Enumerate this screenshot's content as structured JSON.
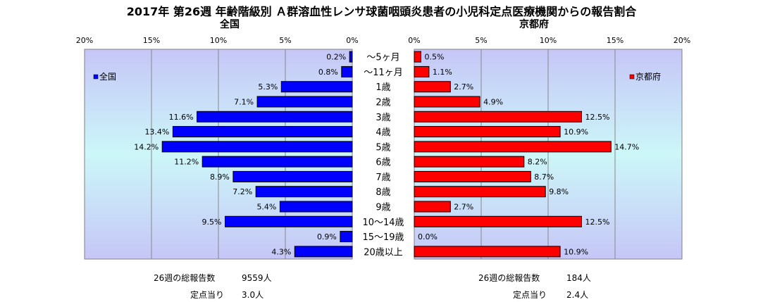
{
  "title": "2017年 第26週 年齢階級別 Ａ群溶血性レンサ球菌咽頭炎患者の小児科定点医療機関からの報告割合",
  "chart_data": [
    {
      "type": "bar",
      "orientation": "horizontal",
      "title": "全国",
      "legend": "全国",
      "legend_position": "left",
      "color": "#0000FF",
      "axis_direction": "reversed",
      "xlim": [
        0,
        20
      ],
      "ticks": [
        "20%",
        "15%",
        "10%",
        "5%",
        "0%"
      ],
      "categories": [
        "〜5ヶ月",
        "〜11ヶ月",
        "1歳",
        "2歳",
        "3歳",
        "4歳",
        "5歳",
        "6歳",
        "7歳",
        "8歳",
        "9歳",
        "10〜14歳",
        "15〜19歳",
        "20歳以上"
      ],
      "values": [
        0.2,
        0.8,
        5.3,
        7.1,
        11.6,
        13.4,
        14.2,
        11.2,
        8.9,
        7.2,
        5.4,
        9.5,
        0.9,
        4.3
      ],
      "value_labels": [
        "0.2%",
        "0.8%",
        "5.3%",
        "7.1%",
        "11.6%",
        "13.4%",
        "14.2%",
        "11.2%",
        "8.9%",
        "7.2%",
        "5.4%",
        "9.5%",
        "0.9%",
        "4.3%"
      ],
      "grid": true
    },
    {
      "type": "bar",
      "orientation": "horizontal",
      "title": "京都府",
      "legend": "京都府",
      "legend_position": "right",
      "color": "#FF0000",
      "xlim": [
        0,
        20
      ],
      "ticks": [
        "0%",
        "5%",
        "10%",
        "15%",
        "20%"
      ],
      "categories": [
        "〜5ヶ月",
        "〜11ヶ月",
        "1歳",
        "2歳",
        "3歳",
        "4歳",
        "5歳",
        "6歳",
        "7歳",
        "8歳",
        "9歳",
        "10〜14歳",
        "15〜19歳",
        "20歳以上"
      ],
      "values": [
        0.5,
        1.1,
        2.7,
        4.9,
        12.5,
        10.9,
        14.7,
        8.2,
        8.7,
        9.8,
        2.7,
        12.5,
        0.0,
        10.9
      ],
      "value_labels": [
        "0.5%",
        "1.1%",
        "2.7%",
        "4.9%",
        "12.5%",
        "10.9%",
        "14.7%",
        "8.2%",
        "8.7%",
        "9.8%",
        "2.7%",
        "12.5%",
        "0.0%",
        "10.9%"
      ],
      "grid": true
    }
  ],
  "footer": {
    "national": {
      "total_label": "26週の総報告数",
      "total_value": "9559人",
      "per_label": "定点当り",
      "per_value": "3.0人"
    },
    "kyoto": {
      "total_label": "26週の総報告数",
      "total_value": "184人",
      "per_label": "定点当り",
      "per_value": "2.4人"
    }
  },
  "colors": {
    "panel_top": "#c8c8f8",
    "panel_mid": "#ccf6f8",
    "national_bar": "#0000FF",
    "kyoto_bar": "#FF0000"
  }
}
